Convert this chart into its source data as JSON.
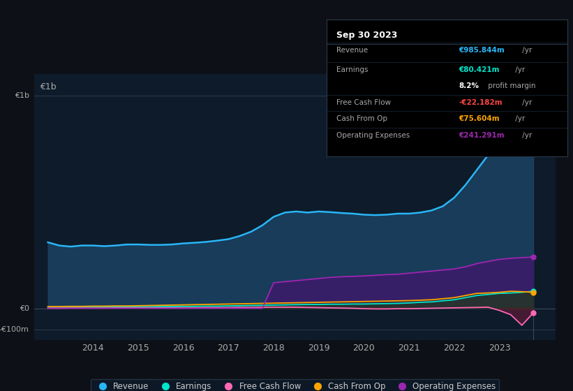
{
  "background_color": "#0d1117",
  "plot_bg_color": "#0d1b2a",
  "grid_color": "#2a3a4a",
  "years": [
    2013.0,
    2013.25,
    2013.5,
    2013.75,
    2014.0,
    2014.25,
    2014.5,
    2014.75,
    2015.0,
    2015.25,
    2015.5,
    2015.75,
    2016.0,
    2016.25,
    2016.5,
    2016.75,
    2017.0,
    2017.25,
    2017.5,
    2017.75,
    2018.0,
    2018.25,
    2018.5,
    2018.75,
    2019.0,
    2019.25,
    2019.5,
    2019.75,
    2020.0,
    2020.25,
    2020.5,
    2020.75,
    2021.0,
    2021.25,
    2021.5,
    2021.75,
    2022.0,
    2022.25,
    2022.5,
    2022.75,
    2023.0,
    2023.25,
    2023.5,
    2023.75
  ],
  "revenue": [
    310,
    295,
    290,
    295,
    295,
    292,
    295,
    300,
    300,
    298,
    298,
    300,
    305,
    308,
    312,
    318,
    325,
    340,
    360,
    390,
    430,
    450,
    455,
    450,
    455,
    452,
    448,
    445,
    440,
    438,
    440,
    445,
    445,
    450,
    460,
    480,
    520,
    580,
    650,
    720,
    800,
    870,
    940,
    985
  ],
  "earnings": [
    5,
    5,
    5,
    5,
    6,
    6,
    6,
    6,
    7,
    7,
    8,
    8,
    9,
    9,
    10,
    10,
    11,
    12,
    13,
    14,
    15,
    16,
    17,
    18,
    18,
    19,
    19,
    20,
    20,
    21,
    22,
    23,
    25,
    28,
    30,
    35,
    40,
    50,
    60,
    65,
    70,
    72,
    75,
    80
  ],
  "free_cash_flow": [
    0,
    0,
    1,
    1,
    1,
    1,
    2,
    2,
    2,
    2,
    2,
    2,
    2,
    2,
    3,
    3,
    3,
    4,
    4,
    5,
    5,
    5,
    5,
    4,
    3,
    2,
    1,
    0,
    -2,
    -3,
    -3,
    -2,
    -2,
    -1,
    0,
    1,
    2,
    3,
    4,
    5,
    -10,
    -30,
    -80,
    -22
  ],
  "cash_from_op": [
    8,
    8,
    9,
    9,
    10,
    10,
    11,
    11,
    12,
    13,
    14,
    15,
    16,
    17,
    18,
    19,
    20,
    21,
    22,
    23,
    24,
    25,
    26,
    27,
    28,
    29,
    30,
    31,
    32,
    33,
    34,
    35,
    36,
    38,
    40,
    45,
    50,
    60,
    70,
    72,
    75,
    80,
    78,
    75
  ],
  "operating_expenses": [
    0,
    0,
    0,
    0,
    0,
    0,
    0,
    0,
    0,
    0,
    0,
    0,
    0,
    0,
    0,
    0,
    0,
    0,
    0,
    0,
    120,
    125,
    130,
    135,
    140,
    145,
    148,
    150,
    152,
    155,
    158,
    160,
    165,
    170,
    175,
    180,
    185,
    195,
    210,
    220,
    230,
    235,
    238,
    241
  ],
  "revenue_color": "#29b6f6",
  "earnings_color": "#00e5cc",
  "fcf_color": "#ff69b4",
  "cashop_color": "#ffa500",
  "opex_color": "#9c27b0",
  "revenue_fill": "#1a4060",
  "opex_fill": "#3d1a6b",
  "ylim_min": -150,
  "ylim_max": 1100,
  "yticks": [
    -100,
    0,
    1000
  ],
  "ytick_labels": [
    "-€100m",
    "€0",
    "€1b"
  ],
  "xticks": [
    2014,
    2015,
    2016,
    2017,
    2018,
    2019,
    2020,
    2021,
    2022,
    2023
  ],
  "legend_items": [
    "Revenue",
    "Earnings",
    "Free Cash Flow",
    "Cash From Op",
    "Operating Expenses"
  ],
  "legend_colors": [
    "#29b6f6",
    "#00e5cc",
    "#ff69b4",
    "#ffa500",
    "#9c27b0"
  ],
  "tooltip_title": "Sep 30 2023",
  "tooltip_items": [
    {
      "label": "Revenue",
      "value": "€985.844m /yr",
      "color": "#29b6f6"
    },
    {
      "label": "Earnings",
      "value": "€80.421m /yr",
      "color": "#00e5cc"
    },
    {
      "label": "",
      "value": "8.2% profit margin",
      "color": "#ffffff",
      "bold_part": "8.2%"
    },
    {
      "label": "Free Cash Flow",
      "value": "-€22.182m /yr",
      "color": "#ff4444"
    },
    {
      "label": "Cash From Op",
      "value": "€75.604m /yr",
      "color": "#ffa500"
    },
    {
      "label": "Operating Expenses",
      "value": "€241.291m /yr",
      "color": "#9c27b0"
    }
  ]
}
